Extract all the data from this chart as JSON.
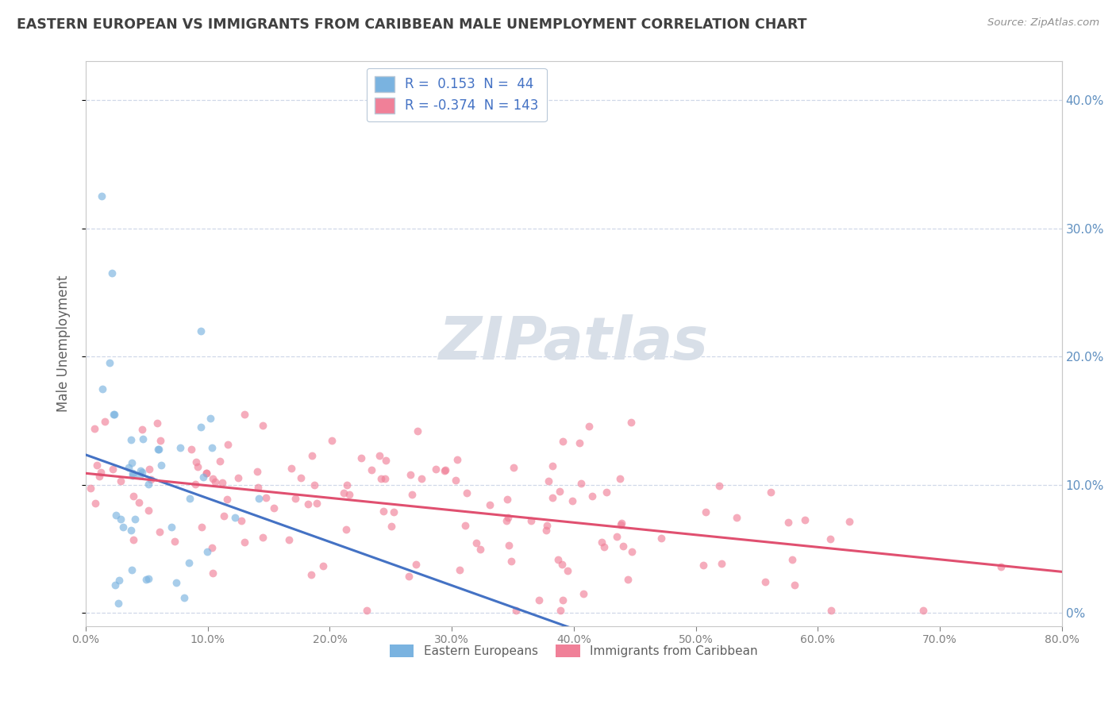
{
  "title": "EASTERN EUROPEAN VS IMMIGRANTS FROM CARIBBEAN MALE UNEMPLOYMENT CORRELATION CHART",
  "source": "Source: ZipAtlas.com",
  "ylabel": "Male Unemployment",
  "xlim": [
    0.0,
    0.8
  ],
  "ylim": [
    -0.01,
    0.43
  ],
  "series1_name": "Eastern Europeans",
  "series2_name": "Immigrants from Caribbean",
  "series1_color": "#7ab3e0",
  "series2_color": "#f08098",
  "series1_line_color": "#4472c4",
  "series2_line_color": "#e05070",
  "series1_R": 0.153,
  "series1_N": 44,
  "series2_R": -0.374,
  "series2_N": 143,
  "legend_R1_text": "R =  0.153  N =  44",
  "legend_R2_text": "R = -0.374  N = 143",
  "watermark": "ZIPatlas",
  "watermark_color": "#d8dfe8",
  "background_color": "#ffffff",
  "grid_color": "#d0d8e8",
  "title_color": "#404040",
  "axis_color": "#c8c8c8",
  "right_axis_tick_color": "#6090c0",
  "source_color": "#909090",
  "seed1": 42,
  "seed2": 43,
  "yticks": [
    0.0,
    0.1,
    0.2,
    0.3,
    0.4
  ],
  "xticks": [
    0.0,
    0.1,
    0.2,
    0.3,
    0.4,
    0.5,
    0.6,
    0.7,
    0.8
  ]
}
